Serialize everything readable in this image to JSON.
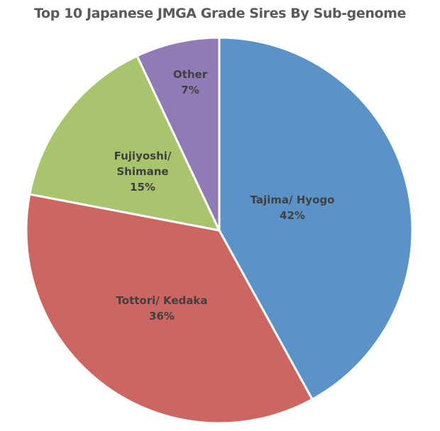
{
  "chart_data": {
    "type": "pie",
    "title": "Top 10 Japanese JMGA Grade Sires By Sub-genome",
    "categories": [
      "Tajima/ Hyogo",
      "Tottori/ Kedaka",
      "Fujiyoshi/ Shimane",
      "Other"
    ],
    "values": [
      42,
      36,
      15,
      7
    ],
    "unit": "%",
    "colors": [
      "#5b93c8",
      "#cd6561",
      "#a8c46c",
      "#917bb4"
    ],
    "labels": [
      {
        "line1": "Tajima/ Hyogo",
        "line2": "",
        "pct": "42%"
      },
      {
        "line1": "Tottori/ Kedaka",
        "line2": "",
        "pct": "36%"
      },
      {
        "line1": "Fujiyoshi/",
        "line2": "Shimane",
        "pct": "15%"
      },
      {
        "line1": "Other",
        "line2": "",
        "pct": "7%"
      }
    ],
    "legend": "none",
    "start_angle_deg": 0,
    "direction": "clockwise"
  }
}
